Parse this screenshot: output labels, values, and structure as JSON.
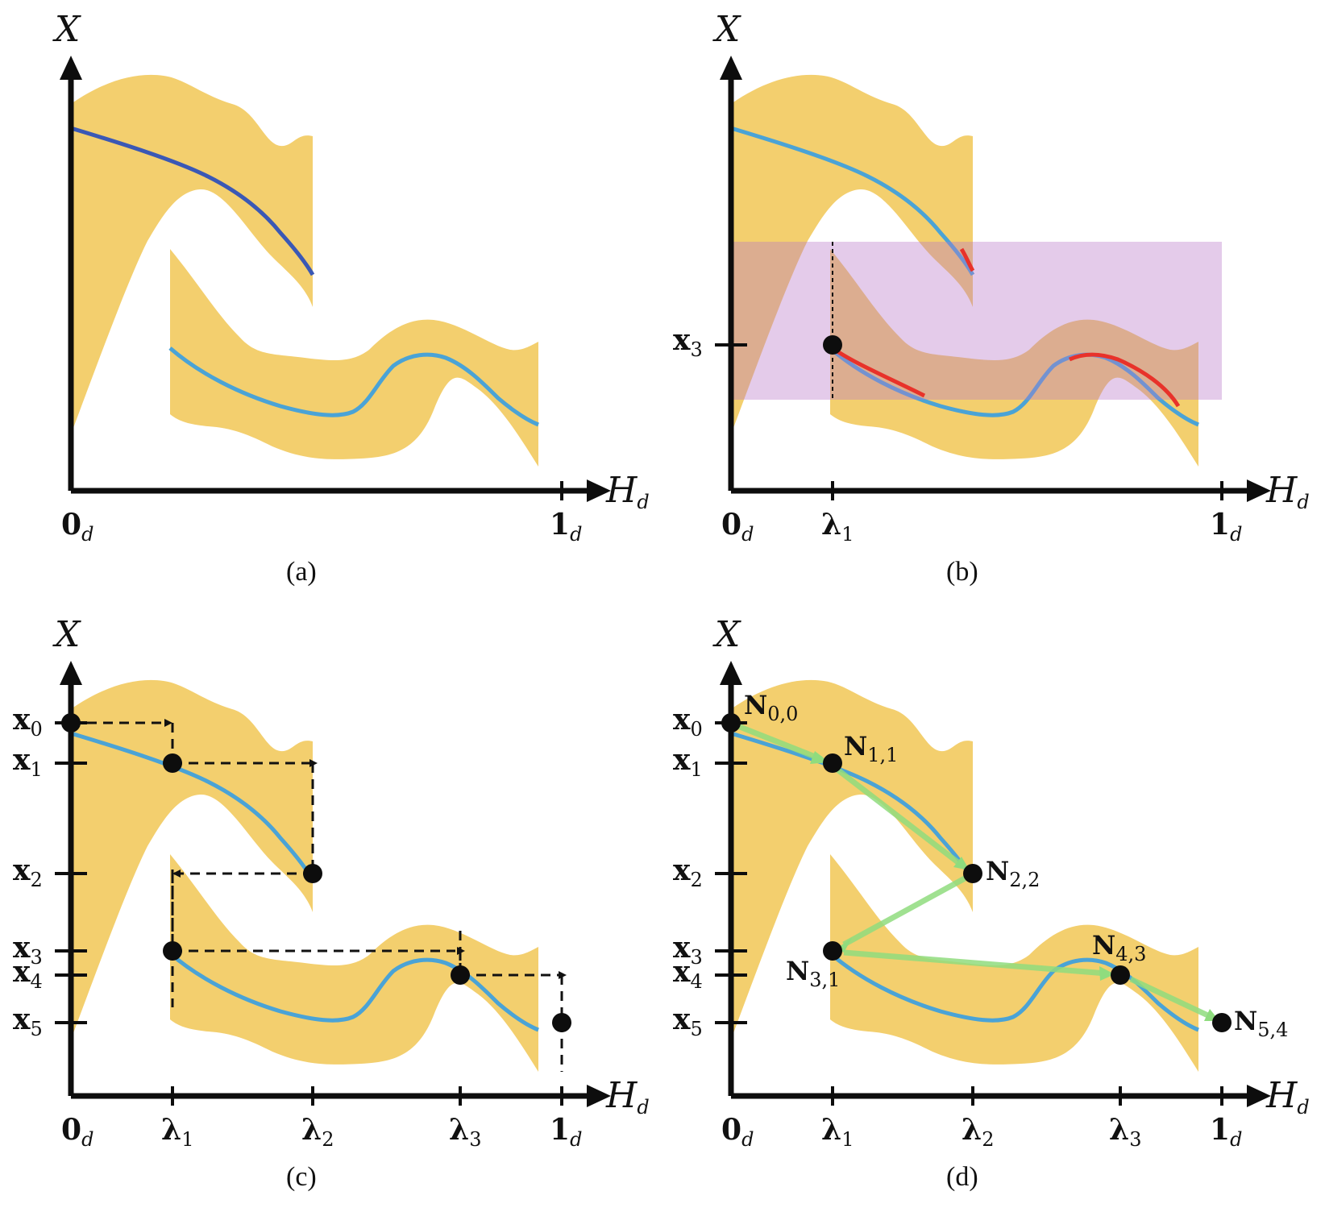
{
  "colors": {
    "band": "#f3cf6e",
    "curve_blue": "#4aa3d6",
    "curve_dark": "#3a58b5",
    "curve_red": "#e8322a",
    "purple": "#cf9fd6",
    "green": "#8fdc7e",
    "axis": "#0d0d0d"
  },
  "axes": {
    "x_name": "H",
    "x_sub": "d",
    "y_name": "X",
    "origin_main": "0",
    "origin_sub": "d",
    "end_main": "1",
    "end_sub": "d"
  },
  "captions": {
    "a": "(a)",
    "b": "(b)",
    "c": "(c)",
    "d": "(d)"
  },
  "lambda_ticks": [
    {
      "main": "λ",
      "sub": "1"
    },
    {
      "main": "λ",
      "sub": "2"
    },
    {
      "main": "λ",
      "sub": "3"
    }
  ],
  "x_ticks": [
    {
      "main": "x",
      "sub": "0"
    },
    {
      "main": "x",
      "sub": "1"
    },
    {
      "main": "x",
      "sub": "2"
    },
    {
      "main": "x",
      "sub": "3"
    },
    {
      "main": "x",
      "sub": "4"
    },
    {
      "main": "x",
      "sub": "5"
    }
  ],
  "panel_b_x_tick": {
    "main": "x",
    "sub": "3"
  },
  "nodes": [
    {
      "main": "N",
      "sub": "0,0"
    },
    {
      "main": "N",
      "sub": "1,1"
    },
    {
      "main": "N",
      "sub": "2,2"
    },
    {
      "main": "N",
      "sub": "3,1"
    },
    {
      "main": "N",
      "sub": "4,3"
    },
    {
      "main": "N",
      "sub": "5,4"
    }
  ]
}
